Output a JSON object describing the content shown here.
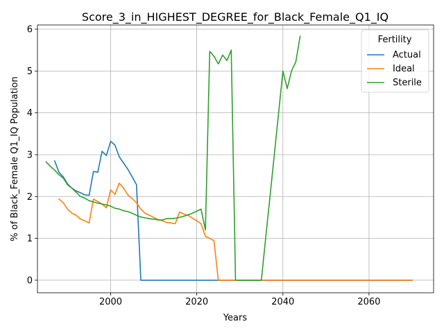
{
  "chart_data": {
    "type": "line",
    "title": "Score_3_in_HIGHEST_DEGREE_for_Black_Female_Q1_IQ",
    "xlabel": "Years",
    "ylabel": "% of Black_Female Q1_IQ Population",
    "xlim": [
      1983,
      2075
    ],
    "ylim": [
      -0.3,
      6.1
    ],
    "xticks": [
      2000,
      2020,
      2040,
      2060
    ],
    "yticks": [
      0,
      1,
      2,
      3,
      4,
      5,
      6
    ],
    "grid": true,
    "legend": {
      "title": "Fertility",
      "placement": "top-right"
    },
    "series": [
      {
        "name": "Actual",
        "color": "#1f77b4",
        "points": [
          [
            1987,
            2.85
          ],
          [
            1988,
            2.58
          ],
          [
            1989,
            2.47
          ],
          [
            1990,
            2.3
          ],
          [
            1991,
            2.2
          ],
          [
            1992,
            2.13
          ],
          [
            1993,
            2.09
          ],
          [
            1994,
            2.04
          ],
          [
            1995,
            2.03
          ],
          [
            1996,
            2.6
          ],
          [
            1997,
            2.58
          ],
          [
            1998,
            3.08
          ],
          [
            1999,
            2.98
          ],
          [
            2000,
            3.32
          ],
          [
            2001,
            3.23
          ],
          [
            2002,
            2.95
          ],
          [
            2003,
            2.8
          ],
          [
            2004,
            2.65
          ],
          [
            2005,
            2.47
          ],
          [
            2006,
            2.28
          ],
          [
            2007,
            0
          ],
          [
            2010,
            0
          ],
          [
            2020,
            0
          ],
          [
            2030,
            0
          ],
          [
            2040,
            0
          ],
          [
            2050,
            0
          ],
          [
            2060,
            0
          ],
          [
            2070,
            0
          ]
        ]
      },
      {
        "name": "Ideal",
        "color": "#ff7f0e",
        "points": [
          [
            1988,
            1.94
          ],
          [
            1989,
            1.85
          ],
          [
            1990,
            1.7
          ],
          [
            1991,
            1.6
          ],
          [
            1992,
            1.55
          ],
          [
            1993,
            1.46
          ],
          [
            1994,
            1.42
          ],
          [
            1995,
            1.37
          ],
          [
            1996,
            1.94
          ],
          [
            1997,
            1.88
          ],
          [
            1998,
            1.82
          ],
          [
            1999,
            1.73
          ],
          [
            2000,
            2.16
          ],
          [
            2001,
            2.05
          ],
          [
            2002,
            2.32
          ],
          [
            2003,
            2.2
          ],
          [
            2004,
            2.04
          ],
          [
            2005,
            1.95
          ],
          [
            2006,
            1.85
          ],
          [
            2007,
            1.7
          ],
          [
            2008,
            1.6
          ],
          [
            2009,
            1.55
          ],
          [
            2010,
            1.5
          ],
          [
            2011,
            1.45
          ],
          [
            2012,
            1.42
          ],
          [
            2013,
            1.38
          ],
          [
            2014,
            1.37
          ],
          [
            2015,
            1.35
          ],
          [
            2016,
            1.63
          ],
          [
            2017,
            1.58
          ],
          [
            2018,
            1.55
          ],
          [
            2019,
            1.48
          ],
          [
            2020,
            1.42
          ],
          [
            2021,
            1.35
          ],
          [
            2022,
            1.05
          ],
          [
            2023,
            1.0
          ],
          [
            2024,
            0.94
          ],
          [
            2025,
            0
          ],
          [
            2030,
            0
          ],
          [
            2040,
            0
          ],
          [
            2050,
            0
          ],
          [
            2060,
            0
          ],
          [
            2070,
            0
          ]
        ]
      },
      {
        "name": "Sterile",
        "color": "#2ca02c",
        "points": [
          [
            1985,
            2.83
          ],
          [
            1986,
            2.72
          ],
          [
            1987,
            2.63
          ],
          [
            1988,
            2.52
          ],
          [
            1989,
            2.44
          ],
          [
            1990,
            2.28
          ],
          [
            1991,
            2.2
          ],
          [
            1992,
            2.1
          ],
          [
            1993,
            2.0
          ],
          [
            1994,
            1.96
          ],
          [
            1995,
            1.9
          ],
          [
            1996,
            1.87
          ],
          [
            1997,
            1.84
          ],
          [
            1998,
            1.82
          ],
          [
            1999,
            1.8
          ],
          [
            2000,
            1.77
          ],
          [
            2001,
            1.72
          ],
          [
            2002,
            1.7
          ],
          [
            2003,
            1.66
          ],
          [
            2004,
            1.64
          ],
          [
            2005,
            1.6
          ],
          [
            2006,
            1.55
          ],
          [
            2007,
            1.51
          ],
          [
            2008,
            1.49
          ],
          [
            2009,
            1.47
          ],
          [
            2010,
            1.46
          ],
          [
            2011,
            1.44
          ],
          [
            2012,
            1.44
          ],
          [
            2013,
            1.47
          ],
          [
            2014,
            1.47
          ],
          [
            2015,
            1.48
          ],
          [
            2016,
            1.5
          ],
          [
            2017,
            1.53
          ],
          [
            2018,
            1.56
          ],
          [
            2019,
            1.6
          ],
          [
            2020,
            1.65
          ],
          [
            2021,
            1.7
          ],
          [
            2022,
            1.2
          ],
          [
            2023,
            5.47
          ],
          [
            2024,
            5.35
          ],
          [
            2025,
            5.17
          ],
          [
            2026,
            5.38
          ],
          [
            2027,
            5.25
          ],
          [
            2028,
            5.5
          ],
          [
            2029,
            0
          ],
          [
            2030,
            0
          ],
          [
            2035,
            0
          ],
          [
            2036,
            1.0
          ],
          [
            2037,
            2.0
          ],
          [
            2038,
            3.0
          ],
          [
            2039,
            4.0
          ],
          [
            2040,
            5.0
          ],
          [
            2041,
            4.58
          ],
          [
            2042,
            5.0
          ],
          [
            2043,
            5.22
          ],
          [
            2044,
            5.83
          ]
        ]
      }
    ]
  }
}
